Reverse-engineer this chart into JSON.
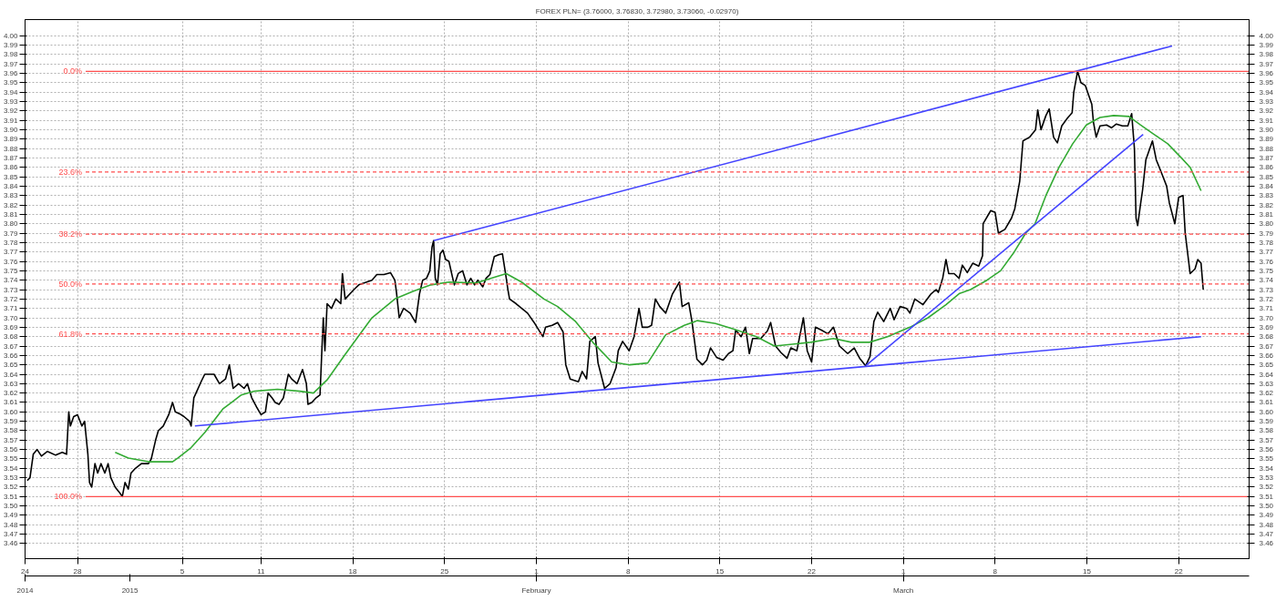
{
  "chart_data": {
    "type": "line",
    "title": "FOREX PLN= (3.76000, 3.76830, 3.72980, 3.73060, -0.02970)",
    "xlim": [
      "2014-12-24T00:00",
      "2015-03-27T09:00"
    ],
    "xticks": [
      {
        "value": "2014-12-24",
        "label": "24"
      },
      {
        "value": "2014-12-28",
        "label": "28"
      },
      {
        "value": "2015-01-05",
        "label": "5"
      },
      {
        "value": "2015-01-11",
        "label": "11"
      },
      {
        "value": "2015-01-18",
        "label": "18"
      },
      {
        "value": "2015-01-25",
        "label": "25"
      },
      {
        "value": "2015-02-01",
        "label": "1"
      },
      {
        "value": "2015-02-08",
        "label": "8"
      },
      {
        "value": "2015-02-15",
        "label": "15"
      },
      {
        "value": "2015-02-22",
        "label": "22"
      },
      {
        "value": "2015-03-01",
        "label": "1"
      },
      {
        "value": "2015-03-08",
        "label": "8"
      },
      {
        "value": "2015-03-15",
        "label": "15"
      },
      {
        "value": "2015-03-22",
        "label": "22"
      }
    ],
    "x2lim": [
      "2014-12-24T00:00",
      "2015-03-27T09:00"
    ],
    "x2ticks": [
      {
        "value": "2014-12-24",
        "label": "2014"
      },
      {
        "value": "2015-01-01",
        "label": "2015"
      },
      {
        "value": "2015-02-01",
        "label": "February"
      },
      {
        "value": "2015-03-01",
        "label": "March"
      }
    ],
    "ylim": [
      3.444,
      4.017
    ],
    "yticks": [
      3.46,
      3.47,
      3.48,
      3.49,
      {
        "value": 3.5,
        "label": "3.50"
      },
      3.51,
      3.52,
      3.53,
      3.54,
      3.55,
      3.56,
      3.57,
      3.58,
      3.59,
      {
        "value": 3.6,
        "label": "3.60"
      },
      3.61,
      3.62,
      3.63,
      3.64,
      3.65,
      3.66,
      3.67,
      3.68,
      3.69,
      {
        "value": 3.7,
        "label": "3.70"
      },
      3.71,
      3.72,
      3.73,
      3.74,
      3.75,
      3.76,
      3.77,
      3.78,
      3.79,
      {
        "value": 3.8,
        "label": "3.80"
      },
      3.81,
      3.82,
      3.83,
      3.84,
      3.85,
      3.86,
      3.87,
      3.88,
      3.89,
      {
        "value": 3.9,
        "label": "3.90"
      },
      3.91,
      3.92,
      3.93,
      3.94,
      3.95,
      3.96,
      3.97,
      3.98,
      3.99,
      {
        "value": 4.0,
        "label": "4.00"
      }
    ],
    "y2lim": [
      3.444,
      4.017
    ],
    "y2ticks": [
      3.46,
      3.47,
      3.48,
      3.49,
      {
        "value": 3.5,
        "label": "3.50"
      },
      3.51,
      3.52,
      3.53,
      3.54,
      3.55,
      3.56,
      3.57,
      3.58,
      3.59,
      {
        "value": 3.6,
        "label": "3.60"
      },
      3.61,
      3.62,
      3.63,
      3.64,
      3.65,
      3.66,
      3.67,
      3.68,
      3.69,
      {
        "value": 3.7,
        "label": "3.70"
      },
      3.71,
      3.72,
      3.73,
      3.74,
      3.75,
      3.76,
      3.77,
      3.78,
      3.79,
      {
        "value": 3.8,
        "label": "3.80"
      },
      3.81,
      3.82,
      3.83,
      3.84,
      3.85,
      3.86,
      3.87,
      3.88,
      3.89,
      {
        "value": 3.9,
        "label": "3.90"
      },
      3.91,
      3.92,
      3.93,
      3.94,
      3.95,
      3.96,
      3.97,
      3.98,
      3.99,
      {
        "value": 4.0,
        "label": "4.00"
      }
    ],
    "grid": true,
    "line_style": "solid",
    "series": [
      {
        "color": "#000000",
        "x": [
          "2014-12-24T04:00",
          "2014-12-24T09:00",
          "2014-12-24T15:00",
          "2014-12-24T22:00",
          "2014-12-25T06:00",
          "2014-12-25T17:00",
          "2014-12-26T08:00",
          "2014-12-26T20:00",
          "2014-12-27T04:00",
          "2014-12-27T08:00",
          "2014-12-27T11:00",
          "2014-12-27T17:00",
          "2014-12-28T00:00",
          "2014-12-28T08:00",
          "2014-12-28T13:00",
          "2014-12-28T19:00",
          "2014-12-28T22:00",
          "2014-12-29T02:00",
          "2014-12-29T08:00",
          "2014-12-29T13:00",
          "2014-12-29T19:00",
          "2014-12-30T02:00",
          "2014-12-30T08:00",
          "2014-12-30T13:00",
          "2014-12-30T21:00",
          "2014-12-31T04:00",
          "2014-12-31T10:00",
          "2014-12-31T15:00",
          "2014-12-31T21:00",
          "2015-01-01T02:00",
          "2015-01-01T10:00",
          "2015-01-01T21:00",
          "2015-01-02T10:00",
          "2015-01-02T15:00",
          "2015-01-02T23:00",
          "2015-01-03T04:00",
          "2015-01-03T13:00",
          "2015-01-03T23:00",
          "2015-01-04T06:00",
          "2015-01-04T11:00",
          "2015-01-04T19:00",
          "2015-01-05T03:00",
          "2015-01-05T13:00",
          "2015-01-05T16:00",
          "2015-01-05T21:00",
          "2015-01-06T01:00",
          "2015-01-06T11:00",
          "2015-01-06T17:00",
          "2015-01-07T02:00",
          "2015-01-07T10:00",
          "2015-01-07T20:00",
          "2015-01-08T07:00",
          "2015-01-08T14:00",
          "2015-01-08T21:00",
          "2015-01-09T07:00",
          "2015-01-09T17:00",
          "2015-01-09T23:00",
          "2015-01-10T07:00",
          "2015-01-10T16:00",
          "2015-01-11T00:00",
          "2015-01-11T08:00",
          "2015-01-11T13:00",
          "2015-01-11T20:00",
          "2015-01-12T02:00",
          "2015-01-12T09:00",
          "2015-01-12T17:00",
          "2015-01-13T02:00",
          "2015-01-13T08:00",
          "2015-01-13T18:00",
          "2015-01-14T04:00",
          "2015-01-14T11:00",
          "2015-01-14T14:00",
          "2015-01-14T21:00",
          "2015-01-15T05:00",
          "2015-01-15T12:00",
          "2015-01-15T15:00",
          "2015-01-15T18:00",
          "2015-01-15T21:00",
          "2015-01-16T01:00",
          "2015-01-16T09:00",
          "2015-01-16T17:00",
          "2015-01-17T02:00",
          "2015-01-17T05:00",
          "2015-01-17T10:00",
          "2015-01-18T02:00",
          "2015-01-18T11:00",
          "2015-01-19T11:00",
          "2015-01-19T20:00",
          "2015-01-20T09:00",
          "2015-01-20T21:00",
          "2015-01-21T05:00",
          "2015-01-21T08:00",
          "2015-01-21T13:00",
          "2015-01-21T21:00",
          "2015-01-22T09:00",
          "2015-01-22T19:00",
          "2015-01-23T02:00",
          "2015-01-23T08:00",
          "2015-01-23T15:00",
          "2015-01-23T21:00",
          "2015-01-24T01:00",
          "2015-01-24T04:00",
          "2015-01-24T07:00",
          "2015-01-24T11:00",
          "2015-01-24T16:00",
          "2015-01-24T21:00",
          "2015-01-25T02:00",
          "2015-01-25T08:00",
          "2015-01-25T15:00",
          "2015-01-25T18:00",
          "2015-01-26T01:00",
          "2015-01-26T09:00",
          "2015-01-26T17:00",
          "2015-01-27T00:00",
          "2015-01-27T07:00",
          "2015-01-27T13:00",
          "2015-01-27T22:00",
          "2015-01-28T04:00",
          "2015-01-28T11:00",
          "2015-01-28T19:00",
          "2015-01-29T03:00",
          "2015-01-29T10:00",
          "2015-01-29T17:00",
          "2015-01-29T20:00",
          "2015-01-29T23:00",
          "2015-01-30T11:00",
          "2015-01-31T08:00",
          "2015-01-31T20:00",
          "2015-02-01T12:00",
          "2015-02-01T17:00",
          "2015-02-02T05:00",
          "2015-02-02T15:00",
          "2015-02-03T01:00",
          "2015-02-03T06:00",
          "2015-02-03T14:00",
          "2015-02-04T05:00",
          "2015-02-04T12:00",
          "2015-02-04T20:00",
          "2015-02-05T02:00",
          "2015-02-05T12:00",
          "2015-02-05T17:00",
          "2015-02-06T05:00",
          "2015-02-06T15:00",
          "2015-02-07T02:00",
          "2015-02-07T06:00",
          "2015-02-07T14:00",
          "2015-02-08T02:00",
          "2015-02-08T11:00",
          "2015-02-08T20:00",
          "2015-02-09T02:00",
          "2015-02-09T12:00",
          "2015-02-09T19:00",
          "2015-02-10T02:00",
          "2015-02-10T10:00",
          "2015-02-10T21:00",
          "2015-02-11T09:00",
          "2015-02-11T22:00",
          "2015-02-12T03:00",
          "2015-02-12T15:00",
          "2015-02-12T21:00",
          "2015-02-13T06:00",
          "2015-02-13T16:00",
          "2015-02-14T00:00",
          "2015-02-14T07:00",
          "2015-02-14T18:00",
          "2015-02-15T06:00",
          "2015-02-15T16:00",
          "2015-02-16T00:00",
          "2015-02-16T05:00",
          "2015-02-16T15:00",
          "2015-02-16T23:00",
          "2015-02-17T06:00",
          "2015-02-17T12:00",
          "2015-02-18T03:00",
          "2015-02-18T15:00",
          "2015-02-18T21:00",
          "2015-02-19T06:00",
          "2015-02-19T16:00",
          "2015-02-20T03:00",
          "2015-02-20T10:00",
          "2015-02-20T21:00",
          "2015-02-21T09:00",
          "2015-02-21T16:00",
          "2015-02-22T00:00",
          "2015-02-22T07:00",
          "2015-02-22T18:00",
          "2015-02-23T06:00",
          "2015-02-23T16:00",
          "2015-02-24T03:00",
          "2015-02-24T18:00",
          "2015-02-25T06:00",
          "2015-02-25T16:00",
          "2015-02-26T03:00",
          "2015-02-26T11:00",
          "2015-02-26T18:00",
          "2015-02-27T01:00",
          "2015-02-27T12:00",
          "2015-02-28T00:00",
          "2015-02-28T07:00",
          "2015-02-28T18:00",
          "2015-03-01T06:00",
          "2015-03-01T12:00",
          "2015-03-01T21:00",
          "2015-03-02T12:00",
          "2015-03-03T02:00",
          "2015-03-03T12:00",
          "2015-03-03T16:00",
          "2015-03-04T00:00",
          "2015-03-04T06:00",
          "2015-03-04T11:00",
          "2015-03-04T21:00",
          "2015-03-05T06:00",
          "2015-03-05T12:00",
          "2015-03-05T21:00",
          "2015-03-06T07:00",
          "2015-03-06T18:00",
          "2015-03-07T01:00",
          "2015-03-07T02:00",
          "2015-03-07T16:00",
          "2015-03-08T00:00",
          "2015-03-08T06:00",
          "2015-03-08T18:00",
          "2015-03-09T06:00",
          "2015-03-09T12:00",
          "2015-03-09T21:00",
          "2015-03-10T03:00",
          "2015-03-10T15:00",
          "2015-03-11T02:00",
          "2015-03-11T06:00",
          "2015-03-11T12:00",
          "2015-03-11T21:00",
          "2015-03-12T03:00",
          "2015-03-12T11:00",
          "2015-03-12T18:00",
          "2015-03-13T02:00",
          "2015-03-13T12:00",
          "2015-03-13T21:00",
          "2015-03-14T00:00",
          "2015-03-14T07:00",
          "2015-03-14T13:00",
          "2015-03-14T21:00",
          "2015-03-15T09:00",
          "2015-03-15T12:00",
          "2015-03-15T17:00",
          "2015-03-16T00:00",
          "2015-03-16T12:00",
          "2015-03-16T21:00",
          "2015-03-17T06:00",
          "2015-03-17T17:00",
          "2015-03-18T03:00",
          "2015-03-18T10:00",
          "2015-03-18T15:00",
          "2015-03-18T18:00",
          "2015-03-18T21:00",
          "2015-03-19T02:00",
          "2015-03-19T06:00",
          "2015-03-19T12:00",
          "2015-03-20T00:00",
          "2015-03-20T07:00",
          "2015-03-20T18:00",
          "2015-03-21T02:00",
          "2015-03-21T07:00",
          "2015-03-21T17:00",
          "2015-03-22T00:00",
          "2015-03-22T08:00",
          "2015-03-22T12:00",
          "2015-03-22T21:00",
          "2015-03-23T06:00",
          "2015-03-23T11:00",
          "2015-03-23T17:00",
          "2015-03-23T21:00"
        ],
        "values": [
          3.527,
          3.53,
          3.555,
          3.56,
          3.553,
          3.558,
          3.554,
          3.557,
          3.555,
          3.6,
          3.585,
          3.595,
          3.597,
          3.585,
          3.59,
          3.555,
          3.525,
          3.52,
          3.545,
          3.535,
          3.545,
          3.535,
          3.545,
          3.53,
          3.52,
          3.515,
          3.51,
          3.525,
          3.518,
          3.535,
          3.54,
          3.545,
          3.545,
          3.55,
          3.57,
          3.58,
          3.585,
          3.597,
          3.61,
          3.6,
          3.598,
          3.595,
          3.59,
          3.585,
          3.615,
          3.62,
          3.633,
          3.64,
          3.64,
          3.64,
          3.63,
          3.635,
          3.65,
          3.625,
          3.63,
          3.625,
          3.63,
          3.615,
          3.605,
          3.597,
          3.6,
          3.62,
          3.615,
          3.61,
          3.608,
          3.615,
          3.64,
          3.635,
          3.63,
          3.645,
          3.63,
          3.608,
          3.61,
          3.615,
          3.618,
          3.66,
          3.7,
          3.665,
          3.715,
          3.71,
          3.72,
          3.715,
          3.747,
          3.72,
          3.73,
          3.735,
          3.74,
          3.746,
          3.746,
          3.748,
          3.74,
          3.727,
          3.7,
          3.71,
          3.705,
          3.695,
          3.725,
          3.74,
          3.742,
          3.75,
          3.775,
          3.782,
          3.742,
          3.735,
          3.768,
          3.772,
          3.762,
          3.76,
          3.742,
          3.735,
          3.747,
          3.75,
          3.735,
          3.742,
          3.735,
          3.74,
          3.733,
          3.742,
          3.746,
          3.765,
          3.767,
          3.768,
          3.742,
          3.73,
          3.72,
          3.715,
          3.705,
          3.695,
          3.68,
          3.69,
          3.692,
          3.695,
          3.685,
          3.65,
          3.635,
          3.632,
          3.643,
          3.635,
          3.675,
          3.68,
          3.652,
          3.625,
          3.63,
          3.647,
          3.665,
          3.675,
          3.665,
          3.68,
          3.71,
          3.69,
          3.69,
          3.692,
          3.72,
          3.712,
          3.705,
          3.725,
          3.738,
          3.712,
          3.716,
          3.696,
          3.656,
          3.65,
          3.655,
          3.668,
          3.658,
          3.655,
          3.662,
          3.665,
          3.687,
          3.68,
          3.69,
          3.662,
          3.678,
          3.678,
          3.686,
          3.695,
          3.67,
          3.663,
          3.657,
          3.668,
          3.665,
          3.7,
          3.665,
          3.653,
          3.69,
          3.687,
          3.683,
          3.69,
          3.67,
          3.662,
          3.668,
          3.657,
          3.649,
          3.659,
          3.696,
          3.706,
          3.696,
          3.71,
          3.698,
          3.712,
          3.71,
          3.705,
          3.72,
          3.714,
          3.725,
          3.73,
          3.727,
          3.742,
          3.762,
          3.747,
          3.747,
          3.742,
          3.756,
          3.748,
          3.758,
          3.755,
          3.766,
          3.8,
          3.814,
          3.812,
          3.79,
          3.794,
          3.806,
          3.816,
          3.845,
          3.888,
          3.892,
          3.9,
          3.921,
          3.9,
          3.915,
          3.922,
          3.892,
          3.886,
          3.904,
          3.912,
          3.918,
          3.94,
          3.962,
          3.95,
          3.947,
          3.927,
          3.908,
          3.892,
          3.904,
          3.905,
          3.902,
          3.906,
          3.904,
          3.904,
          3.917,
          3.88,
          3.806,
          3.798,
          3.82,
          3.836,
          3.868,
          3.888,
          3.868,
          3.852,
          3.84,
          3.822,
          3.8,
          3.828,
          3.83,
          3.79,
          3.747,
          3.752,
          3.762,
          3.758,
          3.73
        ]
      },
      {
        "color": "#33aa33",
        "x": [
          "2014-12-30T21:00",
          "2014-12-31T21:00",
          "2015-01-02T10:00",
          "2015-01-04T06:00",
          "2015-01-04T16:00",
          "2015-01-05T16:00",
          "2015-01-06T17:00",
          "2015-01-08T02:00",
          "2015-01-09T12:00",
          "2015-01-10T12:00",
          "2015-01-12T06:00",
          "2015-01-13T23:00",
          "2015-01-15T00:00",
          "2015-01-16T01:00",
          "2015-01-17T10:00",
          "2015-01-19T11:00",
          "2015-01-21T05:00",
          "2015-01-22T14:00",
          "2015-01-23T23:00",
          "2015-01-25T08:00",
          "2015-01-27T10:00",
          "2015-01-28T19:00",
          "2015-01-29T17:00",
          "2015-01-30T21:00",
          "2015-02-01T14:00",
          "2015-02-02T15:00",
          "2015-02-04T00:00",
          "2015-02-05T09:00",
          "2015-02-06T18:00",
          "2015-02-08T03:00",
          "2015-02-09T12:00",
          "2015-02-10T21:00",
          "2015-02-12T07:00",
          "2015-02-13T07:00",
          "2015-02-14T16:00",
          "2015-02-16T02:00",
          "2015-02-17T19:00",
          "2015-02-19T04:00",
          "2015-02-20T13:00",
          "2015-02-21T22:00",
          "2015-02-23T16:00",
          "2015-02-25T01:00",
          "2015-02-26T10:00",
          "2015-02-27T19:00",
          "2015-03-01T12:00",
          "2015-03-02T21:00",
          "2015-03-04T06:00",
          "2015-03-05T07:00",
          "2015-03-06T03:00",
          "2015-03-07T09:00",
          "2015-03-08T10:00",
          "2015-03-09T11:00",
          "2015-03-10T08:00",
          "2015-03-11T01:00",
          "2015-03-11T21:00",
          "2015-03-12T21:00",
          "2015-03-13T22:00",
          "2015-03-14T23:00",
          "2015-03-16T00:00",
          "2015-03-17T01:00",
          "2015-03-18T05:00",
          "2015-03-19T02:00",
          "2015-03-20T03:00",
          "2015-03-21T04:00",
          "2015-03-22T05:00",
          "2015-03-22T21:00",
          "2015-03-23T17:00"
        ],
        "values": [
          3.557,
          3.551,
          3.547,
          3.547,
          3.551,
          3.562,
          3.578,
          3.603,
          3.618,
          3.622,
          3.624,
          3.622,
          3.62,
          3.634,
          3.661,
          3.7,
          3.72,
          3.728,
          3.735,
          3.738,
          3.737,
          3.743,
          3.747,
          3.738,
          3.72,
          3.712,
          3.696,
          3.673,
          3.653,
          3.65,
          3.652,
          3.682,
          3.692,
          3.697,
          3.694,
          3.688,
          3.68,
          3.67,
          3.672,
          3.674,
          3.678,
          3.674,
          3.674,
          3.68,
          3.69,
          3.7,
          3.714,
          3.726,
          3.73,
          3.74,
          3.75,
          3.77,
          3.79,
          3.8,
          3.83,
          3.86,
          3.885,
          3.905,
          3.913,
          3.915,
          3.914,
          3.905,
          3.895,
          3.885,
          3.87,
          3.86,
          3.835
        ]
      },
      {
        "color": "#4444ff",
        "x": [
          "2015-01-24T04:00",
          "2015-03-21T12:00"
        ],
        "values": [
          3.782,
          3.989
        ]
      },
      {
        "color": "#4444ff",
        "x": [
          "2015-01-05T23:00",
          "2015-03-23T17:00"
        ],
        "values": [
          3.585,
          3.68
        ]
      },
      {
        "color": "#4444ff",
        "x": [
          "2015-02-26T03:00",
          "2015-03-19T07:00"
        ],
        "values": [
          3.649,
          3.895
        ]
      },
      {
        "name": "0.0%",
        "color": "#ff4d4d",
        "line_style": "solid",
        "x": [
          "2014-12-28T15:00",
          "2015-03-27T09:00"
        ],
        "values": [
          3.962,
          3.962
        ]
      },
      {
        "name": "23.6%",
        "color": "#ff4d4d",
        "line_style": "dashed",
        "x": [
          "2014-12-28T15:00",
          "2015-03-27T09:00"
        ],
        "values": [
          3.855,
          3.855
        ]
      },
      {
        "name": "38.2%",
        "color": "#ff4d4d",
        "line_style": "dashed",
        "x": [
          "2014-12-28T15:00",
          "2015-03-27T09:00"
        ],
        "values": [
          3.789,
          3.789
        ]
      },
      {
        "name": "50.0%",
        "color": "#ff4d4d",
        "line_style": "dashed",
        "x": [
          "2014-12-28T15:00",
          "2015-03-27T09:00"
        ],
        "values": [
          3.736,
          3.736
        ]
      },
      {
        "name": "61.8%",
        "color": "#ff4d4d",
        "line_style": "dashed",
        "x": [
          "2014-12-28T15:00",
          "2015-03-27T09:00"
        ],
        "values": [
          3.683,
          3.683
        ]
      },
      {
        "name": "100.0%",
        "color": "#ff4d4d",
        "line_style": "solid",
        "x": [
          "2014-12-28T15:00",
          "2015-03-27T09:00"
        ],
        "values": [
          3.51,
          3.51
        ]
      }
    ]
  }
}
